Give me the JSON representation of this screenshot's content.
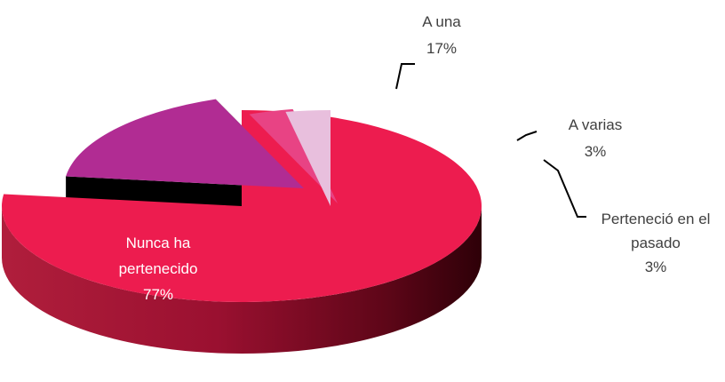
{
  "chart_data": {
    "type": "pie",
    "style": "3d-exploded",
    "title": "",
    "slices": [
      {
        "label": "Nunca ha pertenecido",
        "label_lines": [
          "Nunca ha",
          "pertenecido"
        ],
        "value": 77,
        "value_label": "77%",
        "color": "#ED1C4F",
        "dark": "#8E1027"
      },
      {
        "label": "A una",
        "label_lines": [
          "A una"
        ],
        "value": 17,
        "value_label": "17%",
        "color": "#B12C93",
        "dark": "#000000"
      },
      {
        "label": "A varias",
        "label_lines": [
          "A varias"
        ],
        "value": 3,
        "value_label": "3%",
        "color": "#E84384",
        "dark": "#000000"
      },
      {
        "label": "Perteneció en el pasado",
        "label_lines": [
          "Perteneció en el",
          "pasado"
        ],
        "value": 3,
        "value_label": "3%",
        "color": "#E8BFDD",
        "dark": "#3A2A45"
      }
    ]
  }
}
